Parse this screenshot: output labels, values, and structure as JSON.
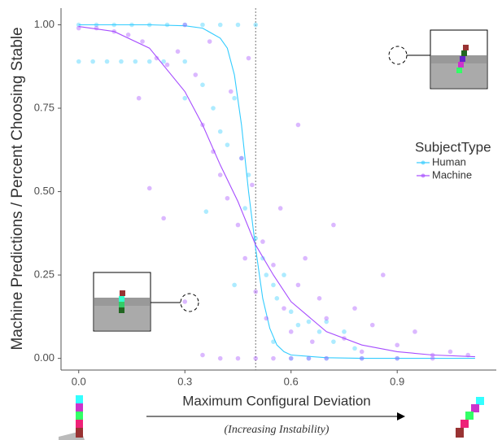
{
  "chart_data": {
    "type": "scatter",
    "xlabel": "Maximum Configural Deviation",
    "ylabel": "Machine Predictions / Percent Choosing Stable",
    "annotation": "(Increasing Instability)",
    "legend_title": "SubjectType",
    "legend_position": "right",
    "grid": false,
    "xlim": [
      -0.05,
      1.18
    ],
    "ylim": [
      -0.035,
      1.05
    ],
    "xticks": [
      {
        "value": 0,
        "label": "0.0"
      },
      0.3,
      0.6,
      0.9
    ],
    "yticks": [
      {
        "value": 0,
        "label": "0.00"
      },
      {
        "value": 0.25,
        "label": "0.25"
      },
      {
        "value": 0.5,
        "label": "0.50"
      },
      {
        "value": 0.75,
        "label": "0.75"
      },
      {
        "value": 1,
        "label": "1.00"
      }
    ],
    "vline": 0.5,
    "series": [
      {
        "name": "Human",
        "color": "#33ccff",
        "x": [
          0,
          0.05,
          0.1,
          0.15,
          0.2,
          0.25,
          0.3,
          0.35,
          0.4,
          0.45,
          0.5,
          0,
          0.04,
          0.08,
          0.12,
          0.16,
          0.2,
          0.24,
          0.3,
          0.3,
          0.35,
          0.38,
          0.4,
          0.42,
          0.44,
          0.46,
          0.47,
          0.48,
          0.5,
          0.52,
          0.53,
          0.55,
          0.56,
          0.58,
          0.6,
          0.62,
          0.65,
          0.68,
          0.7,
          0.72,
          0.75,
          0.55,
          0.6,
          0.65,
          0.7,
          0.8,
          0.9,
          0.36,
          0.44,
          0.78
        ],
        "values": [
          1,
          1,
          1,
          1,
          1,
          1,
          1,
          1,
          1,
          1,
          1,
          0.89,
          0.89,
          0.89,
          0.89,
          0.89,
          0.89,
          0.89,
          0.89,
          0.78,
          0.82,
          0.75,
          0.68,
          0.64,
          0.78,
          0.6,
          0.45,
          0.55,
          0.36,
          0.3,
          0.25,
          0.22,
          0.18,
          0.25,
          0.14,
          0.1,
          0.11,
          0.08,
          0.11,
          0.05,
          0.08,
          0.05,
          0,
          0,
          0,
          0,
          0,
          0.44,
          0.22,
          0.03
        ],
        "fit_x": [
          0,
          0.1,
          0.2,
          0.3,
          0.35,
          0.4,
          0.42,
          0.44,
          0.46,
          0.48,
          0.5,
          0.52,
          0.54,
          0.56,
          0.58,
          0.6,
          0.7,
          0.8,
          1.12
        ],
        "fit_values": [
          1,
          1,
          1,
          0.997,
          0.99,
          0.96,
          0.93,
          0.85,
          0.7,
          0.5,
          0.33,
          0.18,
          0.09,
          0.04,
          0.02,
          0.01,
          0.002,
          0,
          0
        ]
      },
      {
        "name": "Machine",
        "color": "#a64dff",
        "x": [
          0,
          0.05,
          0.1,
          0.14,
          0.18,
          0.22,
          0.25,
          0.28,
          0.3,
          0.33,
          0.35,
          0.37,
          0.38,
          0.4,
          0.42,
          0.43,
          0.45,
          0.46,
          0.47,
          0.49,
          0.5,
          0.52,
          0.53,
          0.55,
          0.57,
          0.58,
          0.6,
          0.62,
          0.64,
          0.66,
          0.68,
          0.7,
          0.72,
          0.75,
          0.78,
          0.8,
          0.83,
          0.86,
          0.9,
          0.95,
          1,
          1.05,
          1.1,
          0.3,
          0.2,
          0.17,
          0.24,
          0.35,
          0.4,
          0.45,
          0.5,
          0.55,
          0.6,
          0.65,
          0.7,
          0.8,
          0.9,
          1,
          0.48,
          0.62
        ],
        "values": [
          0.99,
          0.99,
          0.98,
          0.97,
          0.95,
          0.9,
          0.88,
          0.92,
          1,
          0.85,
          0.7,
          0.95,
          0.62,
          0.55,
          0.48,
          0.8,
          0.4,
          0.6,
          0.3,
          0.52,
          0.2,
          0.35,
          0.12,
          0.28,
          0.45,
          0.15,
          0.08,
          0.22,
          0.3,
          0.05,
          0.18,
          0.12,
          0.4,
          0.06,
          0.15,
          0.02,
          0.1,
          0.25,
          0.04,
          0.08,
          0.01,
          0.02,
          0.01,
          0.17,
          0.51,
          0.78,
          0.42,
          0.01,
          0,
          0,
          0,
          0,
          0,
          0,
          0,
          0,
          0,
          0,
          0.9,
          0.7
        ],
        "fit_x": [
          0,
          0.1,
          0.2,
          0.3,
          0.35,
          0.4,
          0.45,
          0.5,
          0.55,
          0.6,
          0.7,
          0.8,
          0.9,
          1,
          1.12
        ],
        "fit_values": [
          0.995,
          0.98,
          0.93,
          0.8,
          0.7,
          0.58,
          0.47,
          0.34,
          0.25,
          0.17,
          0.08,
          0.04,
          0.02,
          0.01,
          0.005
        ]
      }
    ]
  }
}
